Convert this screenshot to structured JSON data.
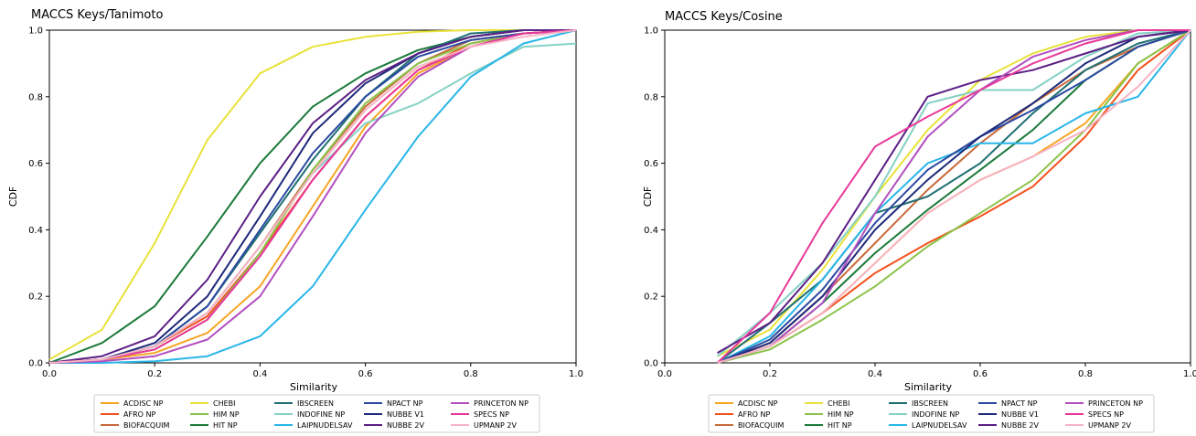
{
  "series_colors": {
    "ACDISC NP": "#f5a623",
    "AFRO NP": "#f4511e",
    "BIOFACQUIM": "#c8693a",
    "CHEBI": "#e8e23a",
    "HIM NP": "#8bc34a",
    "HIT NP": "#1b7a3a",
    "IBSCREEN": "#1f6f73",
    "INDOFINE NP": "#86d1c4",
    "LAIPNUDELSAV": "#29b6e8",
    "NPACT NP": "#2b4aa0",
    "NUBBE V1": "#1e2a7a",
    "NUBBE 2V": "#5b1f85",
    "PRINCETON NP": "#b24fbf",
    "SPECS NP": "#e8399a",
    "UPMANP 2V": "#f6b3c4"
  },
  "chart_data": [
    {
      "type": "line",
      "title": "MACCS Keys/Tanimoto",
      "xlabel": "Similarity",
      "ylabel": "CDF",
      "xlim": [
        0,
        1
      ],
      "ylim": [
        0,
        1
      ],
      "xticks": [
        "0.0",
        "0.2",
        "0.4",
        "0.6",
        "0.8",
        "1.0"
      ],
      "yticks": [
        "0.0",
        "0.2",
        "0.4",
        "0.6",
        "0.8",
        "1.0"
      ],
      "grid": false,
      "legend_position": "below",
      "x": [
        0,
        0.1,
        0.2,
        0.3,
        0.4,
        0.5,
        0.6,
        0.7,
        0.8,
        0.9,
        1.0
      ],
      "series": [
        {
          "name": "ACDISC NP",
          "values": [
            0,
            0.01,
            0.03,
            0.09,
            0.23,
            0.47,
            0.71,
            0.87,
            0.95,
            0.99,
            1.0
          ]
        },
        {
          "name": "AFRO NP",
          "values": [
            0,
            0.01,
            0.05,
            0.14,
            0.33,
            0.55,
            0.74,
            0.88,
            0.96,
            0.99,
            1.0
          ]
        },
        {
          "name": "BIOFACQUIM",
          "values": [
            0,
            0.01,
            0.05,
            0.15,
            0.35,
            0.58,
            0.77,
            0.9,
            0.97,
            0.99,
            1.0
          ]
        },
        {
          "name": "CHEBI",
          "values": [
            0.01,
            0.1,
            0.36,
            0.67,
            0.87,
            0.95,
            0.98,
            0.995,
            1.0,
            1.0,
            1.0
          ]
        },
        {
          "name": "HIM NP",
          "values": [
            0,
            0.01,
            0.04,
            0.13,
            0.33,
            0.58,
            0.78,
            0.9,
            0.96,
            0.99,
            1.0
          ]
        },
        {
          "name": "HIT NP",
          "values": [
            0,
            0.06,
            0.17,
            0.38,
            0.6,
            0.77,
            0.87,
            0.94,
            0.98,
            1.0,
            1.0
          ]
        },
        {
          "name": "IBSCREEN",
          "values": [
            0,
            0.01,
            0.05,
            0.17,
            0.39,
            0.61,
            0.8,
            0.93,
            0.99,
            1.0,
            1.0
          ]
        },
        {
          "name": "INDOFINE NP",
          "values": [
            0,
            0.01,
            0.05,
            0.15,
            0.35,
            0.57,
            0.72,
            0.78,
            0.87,
            0.95,
            0.96
          ]
        },
        {
          "name": "LAIPNUDELSAV",
          "values": [
            0,
            0,
            0.005,
            0.02,
            0.08,
            0.23,
            0.46,
            0.68,
            0.86,
            0.96,
            1.0
          ]
        },
        {
          "name": "NPACT NP",
          "values": [
            0,
            0.01,
            0.05,
            0.17,
            0.4,
            0.63,
            0.8,
            0.92,
            0.97,
            0.99,
            1.0
          ]
        },
        {
          "name": "NUBBE V1",
          "values": [
            0,
            0.01,
            0.06,
            0.2,
            0.44,
            0.69,
            0.84,
            0.93,
            0.98,
            1.0,
            1.0
          ]
        },
        {
          "name": "NUBBE 2V",
          "values": [
            0,
            0.02,
            0.08,
            0.25,
            0.5,
            0.72,
            0.85,
            0.93,
            0.98,
            1.0,
            1.0
          ]
        },
        {
          "name": "PRINCETON NP",
          "values": [
            0,
            0.005,
            0.02,
            0.07,
            0.2,
            0.44,
            0.69,
            0.86,
            0.95,
            0.99,
            1.0
          ]
        },
        {
          "name": "SPECS NP",
          "values": [
            0,
            0.01,
            0.04,
            0.13,
            0.32,
            0.55,
            0.74,
            0.88,
            0.95,
            0.99,
            1.0
          ]
        },
        {
          "name": "UPMANP 2V",
          "values": [
            0,
            0.01,
            0.05,
            0.15,
            0.35,
            0.57,
            0.76,
            0.89,
            0.95,
            0.98,
            1.0
          ]
        }
      ]
    },
    {
      "type": "line",
      "title": "MACCS Keys/Cosine",
      "xlabel": "Similarity",
      "ylabel": "CDF",
      "xlim": [
        0,
        1
      ],
      "ylim": [
        0,
        1
      ],
      "xticks": [
        "0.0",
        "0.2",
        "0.4",
        "0.6",
        "0.8",
        "1.0"
      ],
      "yticks": [
        "0.0",
        "0.2",
        "0.4",
        "0.6",
        "0.8",
        "1.0"
      ],
      "grid": false,
      "legend_position": "below",
      "x": [
        0.1,
        0.2,
        0.3,
        0.4,
        0.5,
        0.6,
        0.7,
        0.8,
        0.9,
        1.0
      ],
      "series": [
        {
          "name": "ACDISC NP",
          "values": [
            0.0,
            0.05,
            0.15,
            0.3,
            0.45,
            0.55,
            0.62,
            0.72,
            0.9,
            1.0
          ]
        },
        {
          "name": "AFRO NP",
          "values": [
            0.0,
            0.05,
            0.15,
            0.27,
            0.36,
            0.44,
            0.53,
            0.68,
            0.88,
            1.0
          ]
        },
        {
          "name": "BIOFACQUIM",
          "values": [
            0.0,
            0.06,
            0.2,
            0.36,
            0.52,
            0.66,
            0.78,
            0.88,
            0.95,
            1.0
          ]
        },
        {
          "name": "CHEBI",
          "values": [
            0.02,
            0.1,
            0.28,
            0.5,
            0.7,
            0.85,
            0.93,
            0.98,
            1.0,
            1.0
          ]
        },
        {
          "name": "HIM NP",
          "values": [
            0.0,
            0.04,
            0.13,
            0.23,
            0.35,
            0.45,
            0.55,
            0.7,
            0.9,
            1.0
          ]
        },
        {
          "name": "HIT NP",
          "values": [
            0.0,
            0.05,
            0.18,
            0.33,
            0.46,
            0.58,
            0.7,
            0.85,
            0.95,
            1.0
          ]
        },
        {
          "name": "IBSCREEN",
          "values": [
            0.0,
            0.12,
            0.25,
            0.45,
            0.5,
            0.6,
            0.75,
            0.88,
            0.96,
            1.0
          ]
        },
        {
          "name": "INDOFINE NP",
          "values": [
            0.02,
            0.15,
            0.3,
            0.5,
            0.78,
            0.82,
            0.82,
            0.92,
            0.99,
            1.0
          ]
        },
        {
          "name": "LAIPNUDELSAV",
          "values": [
            0.0,
            0.08,
            0.25,
            0.45,
            0.6,
            0.66,
            0.66,
            0.75,
            0.8,
            1.0
          ]
        },
        {
          "name": "NPACT NP",
          "values": [
            0.0,
            0.07,
            0.22,
            0.42,
            0.58,
            0.68,
            0.76,
            0.85,
            0.95,
            1.0
          ]
        },
        {
          "name": "NUBBE V1",
          "values": [
            0.0,
            0.06,
            0.2,
            0.4,
            0.55,
            0.68,
            0.78,
            0.9,
            0.98,
            1.0
          ]
        },
        {
          "name": "NUBBE 2V",
          "values": [
            0.03,
            0.12,
            0.3,
            0.55,
            0.8,
            0.85,
            0.88,
            0.93,
            0.98,
            1.0
          ]
        },
        {
          "name": "PRINCETON NP",
          "values": [
            0.0,
            0.05,
            0.18,
            0.45,
            0.68,
            0.82,
            0.92,
            0.97,
            1.0,
            1.0
          ]
        },
        {
          "name": "SPECS NP",
          "values": [
            0.0,
            0.15,
            0.42,
            0.65,
            0.74,
            0.82,
            0.9,
            0.96,
            1.0,
            1.0
          ]
        },
        {
          "name": "UPMANP 2V",
          "values": [
            0.0,
            0.05,
            0.15,
            0.3,
            0.45,
            0.55,
            0.62,
            0.7,
            0.83,
            1.0
          ]
        }
      ]
    }
  ]
}
